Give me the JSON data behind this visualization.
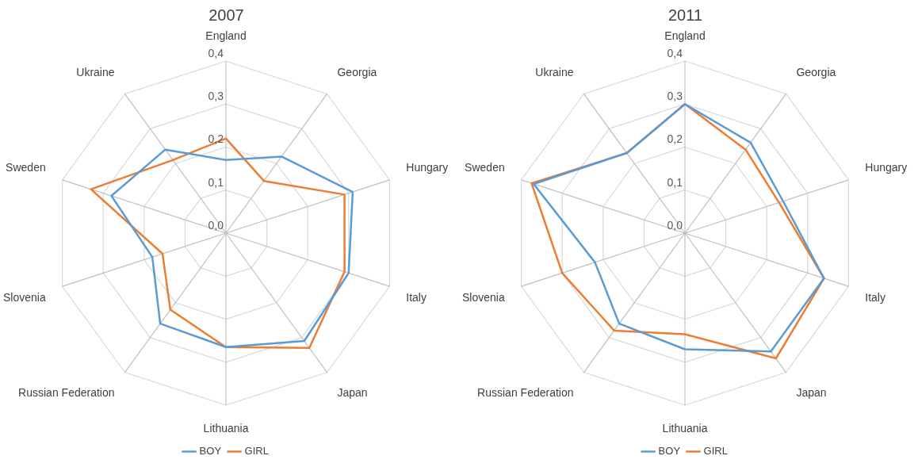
{
  "chart_data": [
    {
      "type": "radar",
      "title": "2007",
      "categories": [
        "England",
        "Georgia",
        "Hungary",
        "Italy",
        "Japan",
        "Lithuania",
        "Russian Federation",
        "Slovenia",
        "Sweden",
        "Ukraine"
      ],
      "series": [
        {
          "name": "BOY",
          "color": "#5b9bd5",
          "values": [
            0.17,
            0.22,
            0.31,
            0.3,
            0.31,
            0.265,
            0.26,
            0.18,
            0.28,
            0.24
          ]
        },
        {
          "name": "GIRL",
          "color": "#ed7d31",
          "values": [
            0.22,
            0.15,
            0.29,
            0.29,
            0.33,
            0.265,
            0.22,
            0.155,
            0.33,
            0.21
          ]
        }
      ],
      "ylim": [
        0,
        0.4
      ],
      "yticks": [
        {
          "value": 0,
          "label": "0,0"
        },
        {
          "value": 0.1,
          "label": "0,1"
        },
        {
          "value": 0.2,
          "label": "0,2"
        },
        {
          "value": 0.3,
          "label": "0,3"
        },
        {
          "value": 0.4,
          "label": "0,4"
        }
      ],
      "grid": true,
      "legend": "bottom",
      "marker": "none"
    },
    {
      "type": "radar",
      "title": "2011",
      "categories": [
        "England",
        "Georgia",
        "Hungary",
        "Italy",
        "Japan",
        "Lithuania",
        "Russian Federation",
        "Slovenia",
        "Sweden",
        "Ukraine"
      ],
      "series": [
        {
          "name": "BOY",
          "color": "#5b9bd5",
          "values": [
            0.3,
            0.26,
            0.24,
            0.34,
            0.34,
            0.27,
            0.26,
            0.22,
            0.37,
            0.23
          ]
        },
        {
          "name": "GIRL",
          "color": "#ed7d31",
          "values": [
            0.3,
            0.24,
            0.23,
            0.34,
            0.36,
            0.235,
            0.28,
            0.3,
            0.375,
            0.23
          ]
        }
      ],
      "ylim": [
        0,
        0.4
      ],
      "yticks": [
        {
          "value": 0,
          "label": "0,0"
        },
        {
          "value": 0.1,
          "label": "0,1"
        },
        {
          "value": 0.2,
          "label": "0,2"
        },
        {
          "value": 0.3,
          "label": "0,3"
        },
        {
          "value": 0.4,
          "label": "0,4"
        }
      ],
      "grid": true,
      "legend": "bottom",
      "marker": "none"
    }
  ]
}
